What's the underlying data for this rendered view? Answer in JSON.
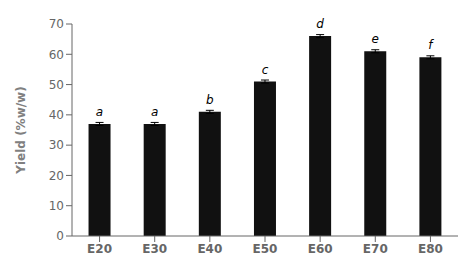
{
  "chart_data": {
    "type": "bar",
    "categories": [
      "E20",
      "E30",
      "E40",
      "E50",
      "E60",
      "E70",
      "E80"
    ],
    "values": [
      37.0,
      37.0,
      41.0,
      51.0,
      66.0,
      61.0,
      59.0
    ],
    "errors": [
      0.5,
      0.5,
      0.5,
      0.5,
      0.5,
      0.5,
      0.5
    ],
    "annotations": [
      "a",
      "a",
      "b",
      "c",
      "d",
      "e",
      "f"
    ],
    "color": "#111111",
    "y_label": "Yield (%w/w)",
    "ylim": [
      0,
      70
    ],
    "yticks": [
      0,
      10,
      20,
      30,
      40,
      50,
      60,
      70
    ],
    "grid": false
  }
}
